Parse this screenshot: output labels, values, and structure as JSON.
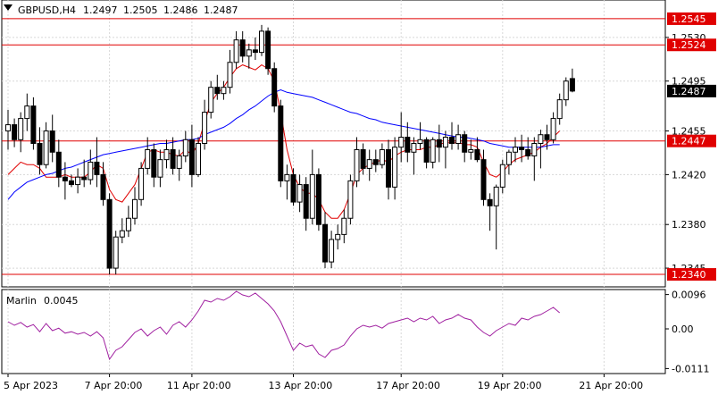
{
  "chart_data": [
    {
      "type": "candlestick",
      "header": {
        "symbol_timeframe": "GBPUSD,H4",
        "open": "1.2497",
        "high": "1.2505",
        "low": "1.2486",
        "close": "1.2487"
      },
      "ylim": [
        1.233,
        1.256
      ],
      "y_tick_labels": [
        "1.2530",
        "1.2495",
        "1.2455",
        "1.2420",
        "1.2380",
        "1.2345"
      ],
      "y_tick_values": [
        1.253,
        1.2495,
        1.2455,
        1.242,
        1.238,
        1.2345
      ],
      "horizontal_levels": [
        {
          "label": "1.2545",
          "value": 1.2545,
          "color": "#e00000"
        },
        {
          "label": "1.2524",
          "value": 1.2524,
          "color": "#e00000"
        },
        {
          "label": "1.2447",
          "value": 1.2447,
          "color": "#e00000"
        },
        {
          "label": "1.2340",
          "value": 1.234,
          "color": "#e00000"
        }
      ],
      "current_price": {
        "label": "1.2487",
        "value": 1.2487
      },
      "ohlc": [
        [
          1.2455,
          1.2472,
          1.244,
          1.246
        ],
        [
          1.246,
          1.2465,
          1.2442,
          1.2448
        ],
        [
          1.2448,
          1.247,
          1.2438,
          1.2465
        ],
        [
          1.2465,
          1.2485,
          1.2455,
          1.2475
        ],
        [
          1.2475,
          1.2482,
          1.244,
          1.2445
        ],
        [
          1.2445,
          1.2458,
          1.242,
          1.2428
        ],
        [
          1.2428,
          1.2462,
          1.2425,
          1.2455
        ],
        [
          1.2455,
          1.2468,
          1.243,
          1.2438
        ],
        [
          1.2438,
          1.2448,
          1.241,
          1.2418
        ],
        [
          1.2418,
          1.243,
          1.24,
          1.2415
        ],
        [
          1.2415,
          1.242,
          1.241,
          1.2412
        ],
        [
          1.2412,
          1.2425,
          1.2405,
          1.2418
        ],
        [
          1.2418,
          1.2432,
          1.241,
          1.2416
        ],
        [
          1.2416,
          1.244,
          1.2412,
          1.243
        ],
        [
          1.243,
          1.245,
          1.241,
          1.242
        ],
        [
          1.242,
          1.243,
          1.2395,
          1.24
        ],
        [
          1.24,
          1.2405,
          1.234,
          1.2345
        ],
        [
          1.2345,
          1.2375,
          1.234,
          1.237
        ],
        [
          1.237,
          1.2385,
          1.2365,
          1.2375
        ],
        [
          1.2375,
          1.2395,
          1.237,
          1.2385
        ],
        [
          1.2385,
          1.241,
          1.238,
          1.24
        ],
        [
          1.24,
          1.243,
          1.2395,
          1.2425
        ],
        [
          1.2425,
          1.245,
          1.242,
          1.244
        ],
        [
          1.244,
          1.2445,
          1.241,
          1.2418
        ],
        [
          1.2418,
          1.244,
          1.241,
          1.2432
        ],
        [
          1.2432,
          1.2448,
          1.2425,
          1.244
        ],
        [
          1.244,
          1.245,
          1.242,
          1.2425
        ],
        [
          1.2425,
          1.244,
          1.2415,
          1.2435
        ],
        [
          1.2435,
          1.2455,
          1.243,
          1.2448
        ],
        [
          1.2448,
          1.246,
          1.241,
          1.242
        ],
        [
          1.242,
          1.245,
          1.2418,
          1.2445
        ],
        [
          1.2445,
          1.248,
          1.244,
          1.247
        ],
        [
          1.247,
          1.2495,
          1.2465,
          1.249
        ],
        [
          1.249,
          1.25,
          1.248,
          1.2485
        ],
        [
          1.2485,
          1.2495,
          1.248,
          1.249
        ],
        [
          1.249,
          1.252,
          1.2485,
          1.251
        ],
        [
          1.251,
          1.2535,
          1.2505,
          1.2528
        ],
        [
          1.2528,
          1.2535,
          1.251,
          1.2515
        ],
        [
          1.2515,
          1.2525,
          1.2505,
          1.252
        ],
        [
          1.252,
          1.253,
          1.2512,
          1.2518
        ],
        [
          1.2518,
          1.254,
          1.2515,
          1.2535
        ],
        [
          1.2535,
          1.2538,
          1.25,
          1.2505
        ],
        [
          1.2505,
          1.251,
          1.247,
          1.2475
        ],
        [
          1.2475,
          1.248,
          1.241,
          1.2415
        ],
        [
          1.2415,
          1.2428,
          1.24,
          1.242
        ],
        [
          1.242,
          1.2425,
          1.2395,
          1.2398
        ],
        [
          1.2398,
          1.242,
          1.239,
          1.2412
        ],
        [
          1.2412,
          1.2418,
          1.2375,
          1.2385
        ],
        [
          1.2385,
          1.244,
          1.238,
          1.242
        ],
        [
          1.242,
          1.2425,
          1.2375,
          1.238
        ],
        [
          1.238,
          1.239,
          1.2345,
          1.235
        ],
        [
          1.235,
          1.2375,
          1.2345,
          1.2368
        ],
        [
          1.2368,
          1.238,
          1.236,
          1.2372
        ],
        [
          1.2372,
          1.2392,
          1.2365,
          1.2385
        ],
        [
          1.2385,
          1.242,
          1.238,
          1.2415
        ],
        [
          1.2415,
          1.245,
          1.241,
          1.244
        ],
        [
          1.244,
          1.2445,
          1.242,
          1.2425
        ],
        [
          1.2425,
          1.244,
          1.2415,
          1.2432
        ],
        [
          1.2432,
          1.244,
          1.2422,
          1.2428
        ],
        [
          1.2428,
          1.2445,
          1.2425,
          1.244
        ],
        [
          1.244,
          1.2448,
          1.24,
          1.241
        ],
        [
          1.241,
          1.245,
          1.24,
          1.2442
        ],
        [
          1.2442,
          1.247,
          1.243,
          1.245
        ],
        [
          1.245,
          1.2462,
          1.243,
          1.2438
        ],
        [
          1.2438,
          1.245,
          1.242,
          1.2445
        ],
        [
          1.2445,
          1.2462,
          1.244,
          1.2448
        ],
        [
          1.2448,
          1.245,
          1.2425,
          1.243
        ],
        [
          1.243,
          1.245,
          1.2425,
          1.2448
        ],
        [
          1.2448,
          1.246,
          1.243,
          1.2442
        ],
        [
          1.2442,
          1.2455,
          1.2425,
          1.245
        ],
        [
          1.245,
          1.2462,
          1.244,
          1.2445
        ],
        [
          1.2445,
          1.246,
          1.244,
          1.2452
        ],
        [
          1.2452,
          1.2455,
          1.243,
          1.2438
        ],
        [
          1.2438,
          1.2448,
          1.2432,
          1.244
        ],
        [
          1.244,
          1.245,
          1.243,
          1.2432
        ],
        [
          1.2432,
          1.244,
          1.2395,
          1.24
        ],
        [
          1.24,
          1.2405,
          1.2375,
          1.2395
        ],
        [
          1.2395,
          1.2412,
          1.236,
          1.241
        ],
        [
          1.241,
          1.2432,
          1.2405,
          1.2428
        ],
        [
          1.2428,
          1.244,
          1.242,
          1.2438
        ],
        [
          1.2438,
          1.245,
          1.243,
          1.2442
        ],
        [
          1.2442,
          1.2452,
          1.243,
          1.244
        ],
        [
          1.244,
          1.245,
          1.2432,
          1.2435
        ],
        [
          1.2435,
          1.245,
          1.2415,
          1.2445
        ],
        [
          1.2445,
          1.2456,
          1.2425,
          1.2452
        ],
        [
          1.2452,
          1.246,
          1.244,
          1.2448
        ],
        [
          1.2448,
          1.247,
          1.2445,
          1.2465
        ],
        [
          1.2465,
          1.2485,
          1.246,
          1.248
        ],
        [
          1.248,
          1.2498,
          1.2475,
          1.2495
        ],
        [
          1.2497,
          1.2505,
          1.2486,
          1.2487
        ]
      ],
      "series": [
        {
          "values": [
            1.242,
            1.2425,
            1.243,
            1.2428,
            1.2428,
            1.2425,
            1.2418,
            1.2418,
            1.2418,
            1.242,
            1.2418,
            1.2418,
            1.2418,
            1.2422,
            1.2428,
            1.2425,
            1.2408,
            1.24,
            1.2398,
            1.2405,
            1.2412,
            1.2425,
            1.2438,
            1.244,
            1.2438,
            1.2438,
            1.2436,
            1.2435,
            1.244,
            1.2436,
            1.2445,
            1.2462,
            1.2478,
            1.2485,
            1.249,
            1.2498,
            1.2505,
            1.2508,
            1.2506,
            1.2504,
            1.2508,
            1.2505,
            1.2495,
            1.247,
            1.244,
            1.242,
            1.241,
            1.2405,
            1.2405,
            1.24,
            1.239,
            1.2385,
            1.2385,
            1.2392,
            1.2405,
            1.242,
            1.2425,
            1.2428,
            1.243,
            1.2432,
            1.243,
            1.2435,
            1.2438,
            1.244,
            1.244,
            1.244,
            1.2442,
            1.2442,
            1.2444,
            1.2446,
            1.2445,
            1.2446,
            1.2444,
            1.2444,
            1.2442,
            1.243,
            1.242,
            1.2418,
            1.2422,
            1.2428,
            1.2432,
            1.2434,
            1.2436,
            1.2438,
            1.2442,
            1.2445,
            1.245,
            1.2455
          ],
          "color": "#e00000"
        },
        {
          "values": [
            1.24,
            1.2406,
            1.241,
            1.2414,
            1.2416,
            1.2418,
            1.242,
            1.2421,
            1.2423,
            1.2425,
            1.2426,
            1.2428,
            1.243,
            1.2432,
            1.2434,
            1.2436,
            1.2437,
            1.2438,
            1.2439,
            1.244,
            1.2441,
            1.2442,
            1.2443,
            1.2444,
            1.2445,
            1.2445,
            1.2446,
            1.2447,
            1.2448,
            1.2448,
            1.2449,
            1.2452,
            1.2454,
            1.2456,
            1.2458,
            1.2461,
            1.2465,
            1.2468,
            1.2472,
            1.2475,
            1.2479,
            1.2483,
            1.2486,
            1.2488,
            1.2486,
            1.2485,
            1.2484,
            1.2483,
            1.2482,
            1.248,
            1.2478,
            1.2476,
            1.2474,
            1.2472,
            1.247,
            1.2469,
            1.2467,
            1.2465,
            1.2464,
            1.2462,
            1.2461,
            1.246,
            1.2459,
            1.2458,
            1.2457,
            1.2456,
            1.2455,
            1.2454,
            1.2453,
            1.2452,
            1.2451,
            1.245,
            1.245,
            1.2449,
            1.2448,
            1.2447,
            1.2445,
            1.2444,
            1.2443,
            1.2442,
            1.2442,
            1.2442,
            1.2442,
            1.2442,
            1.2442,
            1.2443,
            1.2444,
            1.2444
          ],
          "color": "#0000ff"
        }
      ],
      "x_tick_labels": [
        "5 Apr 2023",
        "7 Apr 20:00",
        "11 Apr 20:00",
        "13 Apr 20:00",
        "17 Apr 20:00",
        "19 Apr 20:00",
        "21 Apr 20:00"
      ],
      "x_tick_index": [
        0,
        16,
        29,
        45,
        62,
        78,
        94
      ]
    },
    {
      "type": "line",
      "label_name": "Marlin",
      "label_value": "0.0045",
      "ylim": [
        -0.0125,
        0.011
      ],
      "y_tick_labels": [
        "0.0096",
        "0.00",
        "-0.0111"
      ],
      "y_tick_values": [
        0.0096,
        0.0,
        -0.0111
      ],
      "series": [
        {
          "values": [
            0.002,
            0.001,
            0.0018,
            0.0005,
            0.0012,
            -0.0008,
            0.0015,
            -0.0005,
            0.0002,
            -0.0012,
            -0.0008,
            -0.0015,
            -0.001,
            -0.002,
            -0.0008,
            -0.0025,
            -0.0085,
            -0.006,
            -0.005,
            -0.003,
            -0.001,
            0.0,
            -0.002,
            -0.0005,
            0.0005,
            -0.0015,
            0.001,
            0.002,
            0.0005,
            0.0025,
            0.005,
            0.008,
            0.0075,
            0.0085,
            0.008,
            0.009,
            0.0105,
            0.0095,
            0.009,
            0.01,
            0.0085,
            0.007,
            0.005,
            0.002,
            -0.002,
            -0.006,
            -0.004,
            -0.005,
            -0.0045,
            -0.007,
            -0.008,
            -0.006,
            -0.0055,
            -0.0045,
            -0.002,
            0.0,
            0.001,
            0.0005,
            0.001,
            0.0002,
            0.0015,
            0.002,
            0.0025,
            0.003,
            0.002,
            0.003,
            0.0025,
            0.0035,
            0.0015,
            0.0025,
            0.003,
            0.004,
            0.003,
            0.0025,
            0.0005,
            -0.001,
            -0.002,
            -0.0005,
            0.0005,
            0.0015,
            0.001,
            0.003,
            0.0025,
            0.0035,
            0.004,
            0.005,
            0.006,
            0.0045
          ],
          "color": "#a020a0"
        }
      ]
    }
  ]
}
